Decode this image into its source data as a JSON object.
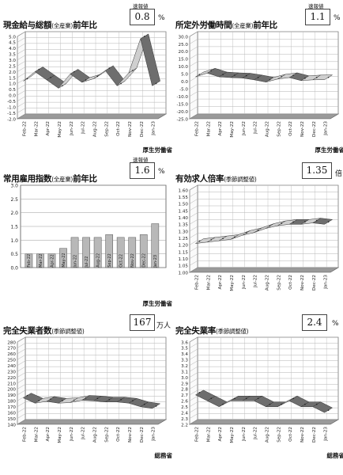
{
  "months": [
    "Feb-22",
    "Mar-22",
    "Apr-22",
    "May-22",
    "Jun-22",
    "Jul-22",
    "Aug-22",
    "Sep-22",
    "Oct-22",
    "Nov-22",
    "Dec-22",
    "Jan-23"
  ],
  "panels": [
    {
      "title_main": "現金給与総額",
      "title_paren": "(全産業)",
      "title_tail": "前年比",
      "flash_label": "速報値",
      "value": "0.8",
      "unit": "%",
      "source": "厚生労働省",
      "yticks": [
        "5.0",
        "4.5",
        "4.0",
        "3.5",
        "3.0",
        "2.5",
        "2.0",
        "1.5",
        "1.0",
        "0.5",
        "0.0",
        "-0.5",
        "-1.0",
        "-1.5",
        "-2.0"
      ]
    },
    {
      "title_main": "所定外労働時間",
      "title_paren": "(全産業)",
      "title_tail": "前年比",
      "flash_label": "速報値",
      "value": "1.1",
      "unit": "%",
      "source": "厚生労働省",
      "yticks": [
        "30.0",
        "25.0",
        "20.0",
        "15.0",
        "10.0",
        "5.0",
        "0.0",
        "-5.0",
        "-10.0",
        "-15.0",
        "-20.0",
        "-25.0"
      ]
    },
    {
      "title_main": "常用雇用指数",
      "title_paren": "(全産業)",
      "title_tail": "前年比",
      "flash_label": "速報値",
      "value": "1.6",
      "unit": "%",
      "source": "厚生労働省",
      "yticks": [
        "3.0",
        "2.5",
        "2.0",
        "1.5",
        "1.0",
        "0.5",
        "0.0"
      ]
    },
    {
      "title_main": "有効求人倍率",
      "title_paren": "(季節調整値)",
      "title_tail": "",
      "flash_label": "",
      "value": "1.35",
      "unit": "倍",
      "source": "",
      "yticks": [
        "1.60",
        "1.55",
        "1.50",
        "1.45",
        "1.40",
        "1.35",
        "1.30",
        "1.25",
        "1.20",
        "1.15",
        "1.10",
        "1.05",
        "1.00"
      ]
    },
    {
      "title_main": "完全失業者数",
      "title_paren": "(季節調整値)",
      "title_tail": "",
      "flash_label": "",
      "value": "167",
      "unit": "万人",
      "source": "総務省",
      "yticks": [
        "280",
        "270",
        "260",
        "250",
        "240",
        "230",
        "220",
        "210",
        "200",
        "190",
        "180",
        "170",
        "160",
        "150",
        "140"
      ]
    },
    {
      "title_main": "完全失業率",
      "title_paren": "(季節調整値)",
      "title_tail": "",
      "flash_label": "",
      "value": "2.4",
      "unit": "%",
      "source": "総務省",
      "yticks": [
        "3.6",
        "3.5",
        "3.4",
        "3.3",
        "3.2",
        "3.1",
        "3.0",
        "2.9",
        "2.8",
        "2.7",
        "2.6",
        "2.5",
        "2.4",
        "2.3",
        "2.2"
      ]
    }
  ],
  "chart_data": [
    {
      "type": "line",
      "title": "現金給与総額(全産業)前年比",
      "categories": [
        "Feb-22",
        "Mar-22",
        "Apr-22",
        "May-22",
        "Jun-22",
        "Jul-22",
        "Aug-22",
        "Sep-22",
        "Oct-22",
        "Nov-22",
        "Dec-22",
        "Jan-23"
      ],
      "values": [
        1.2,
        2.0,
        1.3,
        0.6,
        1.8,
        1.1,
        1.4,
        2.1,
        0.8,
        1.9,
        4.8,
        0.8
      ],
      "ylim": [
        -2.0,
        5.0
      ],
      "grid": true
    },
    {
      "type": "line",
      "title": "所定外労働時間(全産業)前年比",
      "categories": [
        "Feb-22",
        "Mar-22",
        "Apr-22",
        "May-22",
        "Jun-22",
        "Jul-22",
        "Aug-22",
        "Sep-22",
        "Oct-22",
        "Nov-22",
        "Dec-22",
        "Jan-23"
      ],
      "values": [
        3.0,
        5.5,
        3.0,
        2.5,
        2.2,
        1.0,
        -0.5,
        1.5,
        2.5,
        0.5,
        1.0,
        1.1
      ],
      "ylim": [
        -25.0,
        30.0
      ],
      "grid": true
    },
    {
      "type": "bar",
      "title": "常用雇用指数(全産業)前年比",
      "categories": [
        "Feb-22",
        "Mar-22",
        "Apr-22",
        "May-22",
        "Jun-22",
        "Jul-22",
        "Aug-22",
        "Sep-22",
        "Oct-22",
        "Nov-22",
        "Dec-22",
        "Jan-23"
      ],
      "values": [
        0.5,
        0.5,
        0.5,
        0.7,
        1.1,
        1.1,
        1.1,
        1.2,
        1.1,
        1.1,
        1.2,
        1.6
      ],
      "ylim": [
        0.0,
        3.0
      ],
      "grid": true
    },
    {
      "type": "line",
      "title": "有効求人倍率(季節調整値)",
      "categories": [
        "Feb-22",
        "Mar-22",
        "Apr-22",
        "May-22",
        "Jun-22",
        "Jul-22",
        "Aug-22",
        "Sep-22",
        "Oct-22",
        "Nov-22",
        "Dec-22",
        "Jan-23"
      ],
      "values": [
        1.21,
        1.22,
        1.23,
        1.24,
        1.27,
        1.29,
        1.32,
        1.34,
        1.35,
        1.35,
        1.36,
        1.35
      ],
      "ylim": [
        1.0,
        1.6
      ],
      "grid": true
    },
    {
      "type": "line",
      "title": "完全失業者数(季節調整値)",
      "categories": [
        "Feb-22",
        "Mar-22",
        "Apr-22",
        "May-22",
        "Jun-22",
        "Jul-22",
        "Aug-22",
        "Sep-22",
        "Oct-22",
        "Nov-22",
        "Dec-22",
        "Jan-23"
      ],
      "values": [
        185,
        176,
        179,
        176,
        177,
        181,
        180,
        178,
        178,
        176,
        170,
        167
      ],
      "ylim": [
        140,
        280
      ],
      "grid": true
    },
    {
      "type": "line",
      "title": "完全失業率(季節調整値)",
      "categories": [
        "Feb-22",
        "Mar-22",
        "Apr-22",
        "May-22",
        "Jun-22",
        "Jul-22",
        "Aug-22",
        "Sep-22",
        "Oct-22",
        "Nov-22",
        "Dec-22",
        "Jan-23"
      ],
      "values": [
        2.7,
        2.6,
        2.5,
        2.6,
        2.6,
        2.6,
        2.5,
        2.5,
        2.6,
        2.5,
        2.5,
        2.4
      ],
      "ylim": [
        2.2,
        3.6
      ],
      "grid": true
    }
  ]
}
